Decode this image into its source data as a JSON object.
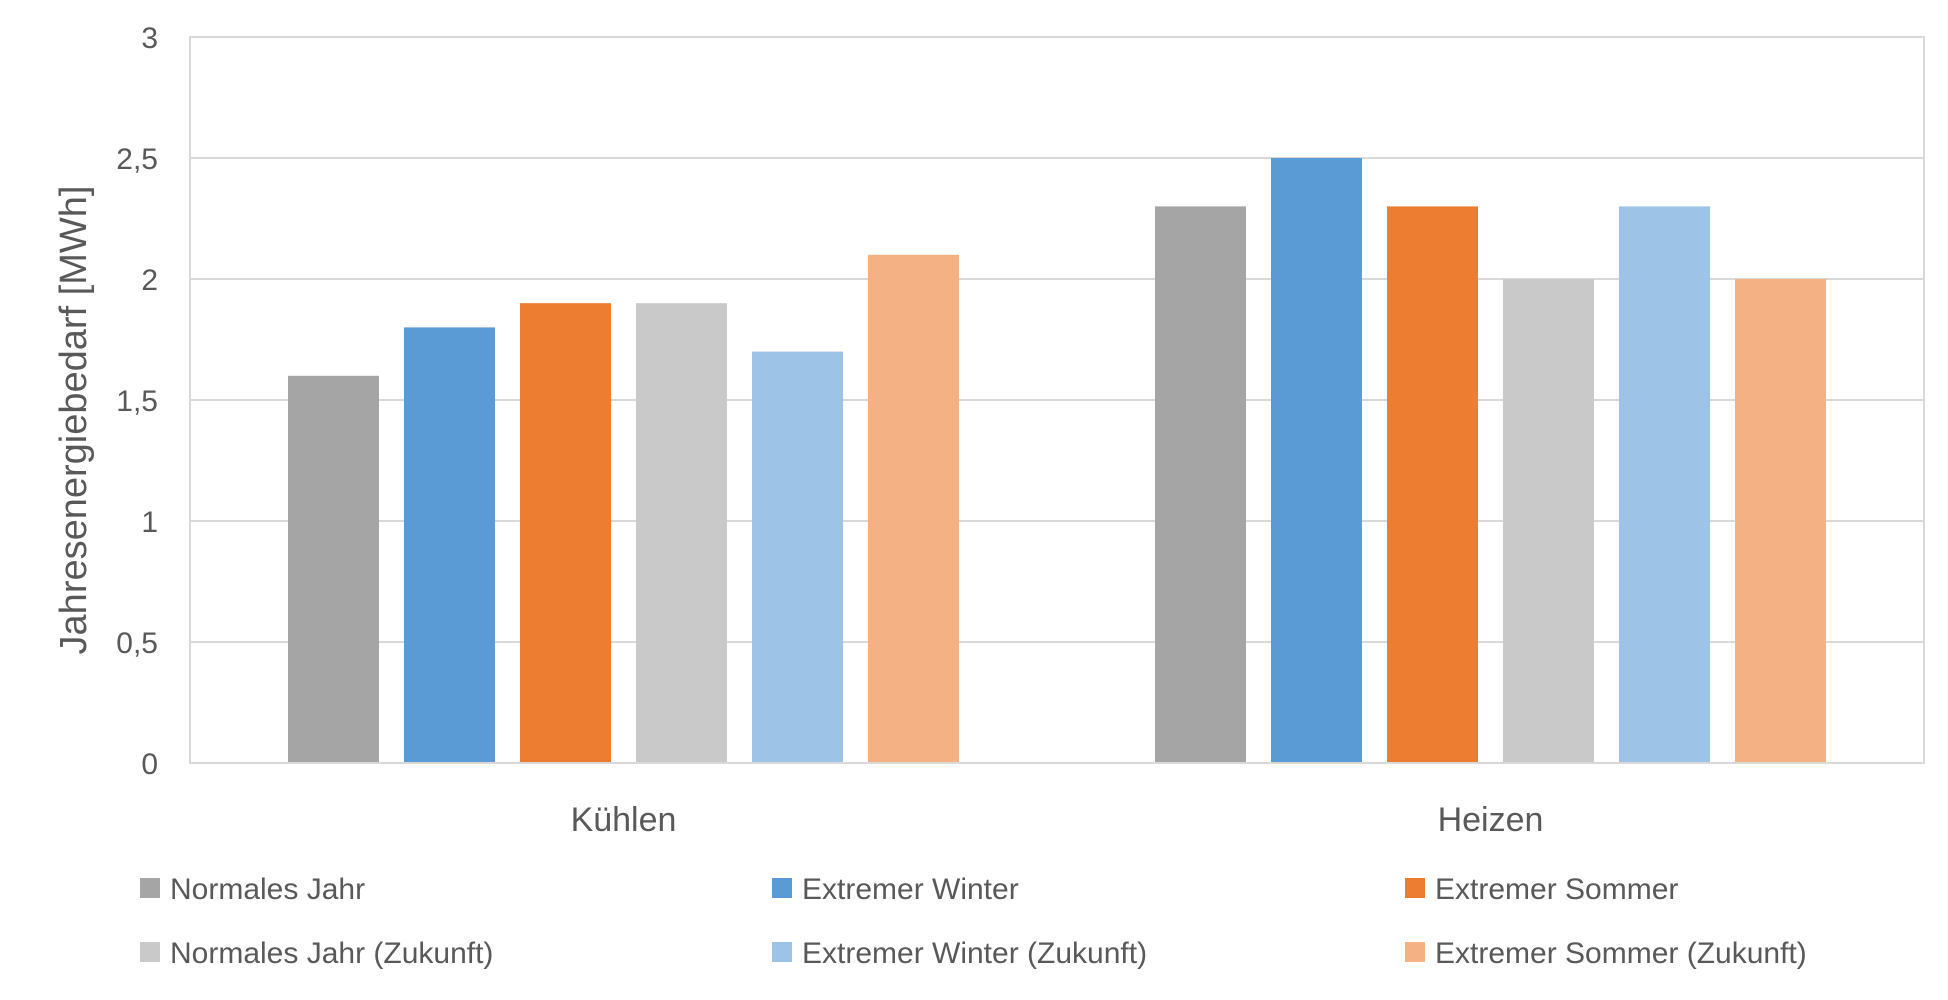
{
  "chart_data": {
    "type": "bar",
    "title": "",
    "xlabel": "",
    "ylabel": "Jahresenergiebedarf [MWh]",
    "ylim": [
      0,
      3
    ],
    "yticks": [
      "0",
      "0,5",
      "1",
      "1,5",
      "2",
      "2,5",
      "3"
    ],
    "categories": [
      "Kühlen",
      "Heizen"
    ],
    "grid": true,
    "legend_position": "bottom",
    "series": [
      {
        "name": "Normales Jahr",
        "color": "#a5a5a5",
        "values": [
          1.6,
          2.3
        ]
      },
      {
        "name": "Extremer Winter",
        "color": "#5b9bd5",
        "values": [
          1.8,
          2.5
        ]
      },
      {
        "name": "Extremer Sommer",
        "color": "#ed7d31",
        "values": [
          1.9,
          2.3
        ]
      },
      {
        "name": "Normales Jahr (Zukunft)",
        "color": "#c9c9c9",
        "values": [
          1.9,
          2.0
        ]
      },
      {
        "name": "Extremer Winter (Zukunft)",
        "color": "#9dc3e6",
        "values": [
          1.7,
          2.3
        ]
      },
      {
        "name": "Extremer Sommer (Zukunft)",
        "color": "#f4b183",
        "values": [
          2.1,
          2.0
        ]
      }
    ]
  }
}
